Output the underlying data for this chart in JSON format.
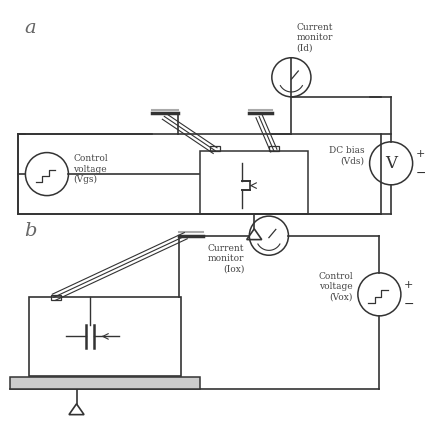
{
  "bg_color": "#ffffff",
  "line_color": "#333333",
  "gray_color": "#aaaaaa",
  "label_a": "a",
  "label_b": "b",
  "diagram_a": {
    "current_monitor_label": "Current\nmonitor\n(Id)",
    "dc_bias_label": "DC bias\n(Vds)",
    "control_voltage_label": "Control\nvoltage\n(Vgs)",
    "plus": "+",
    "minus": "−"
  },
  "diagram_b": {
    "current_monitor_label": "Current\nmonitor\n(Iox)",
    "control_voltage_label": "Control\nvoltage\n(Vox)",
    "plus": "+",
    "minus": "−"
  }
}
